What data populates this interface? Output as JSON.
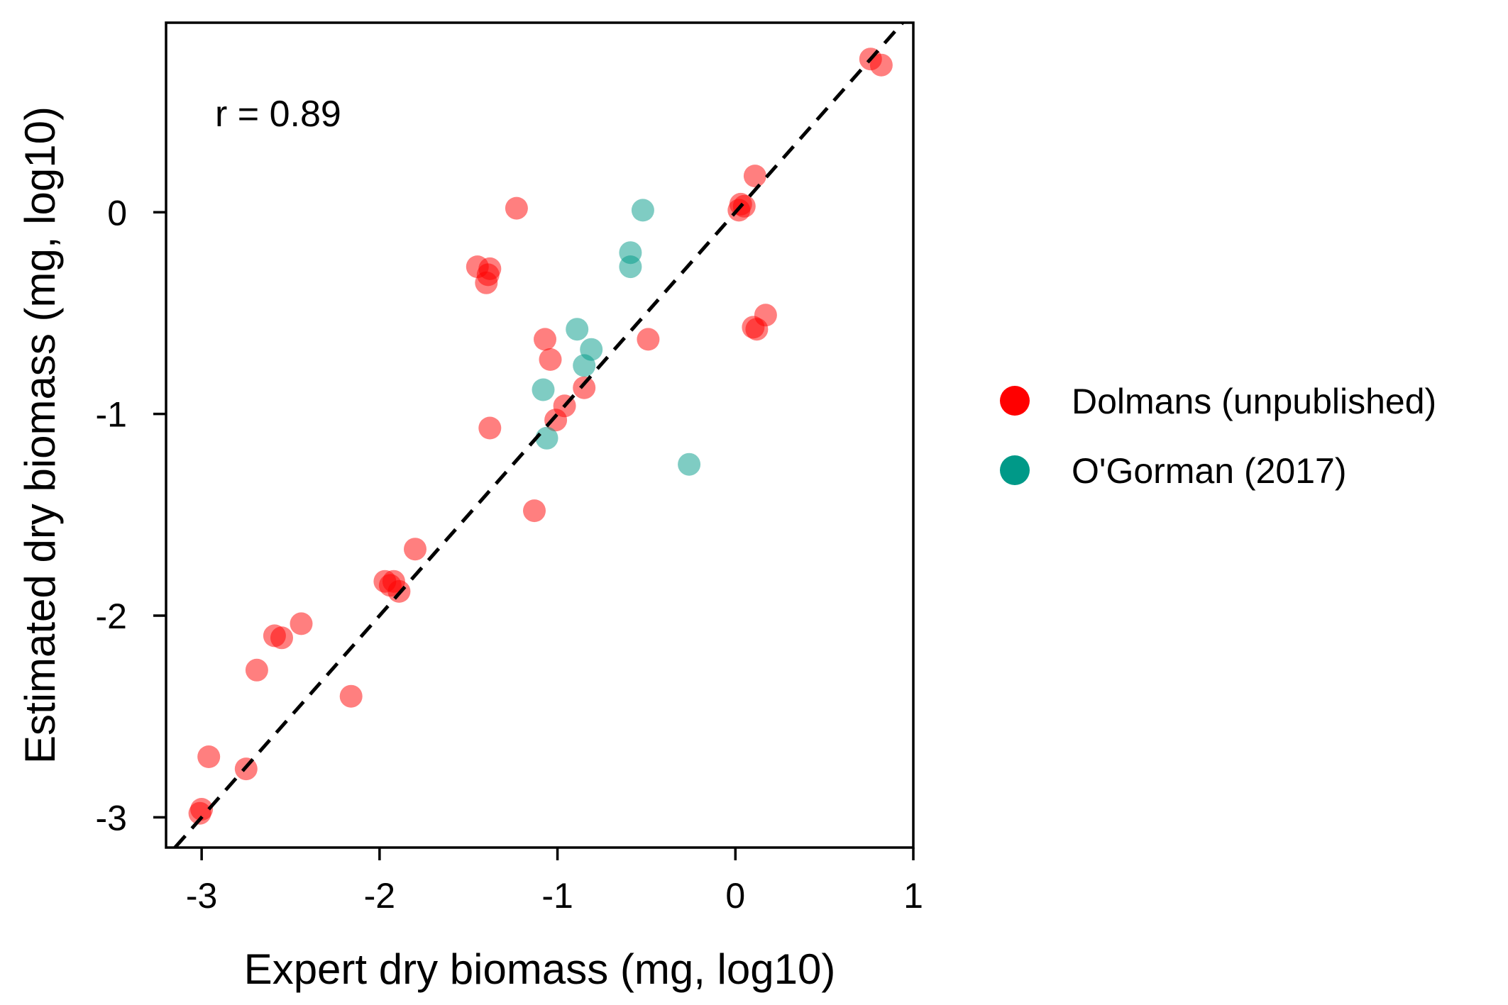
{
  "chart_data": {
    "type": "scatter",
    "xlabel": "Expert dry biomass (mg, log10)",
    "ylabel": "Estimated dry biomass (mg, log10)",
    "xlim": [
      -3.2,
      1.0
    ],
    "ylim": [
      -3.15,
      0.94
    ],
    "xticks": [
      -3,
      -2,
      -1,
      0,
      1
    ],
    "yticks": [
      -3,
      -2,
      -1,
      0
    ],
    "xtick_labels": [
      "-3",
      "-2",
      "-1",
      "0",
      "1"
    ],
    "ytick_labels": [
      "-3",
      "-2",
      "-1",
      "0"
    ],
    "grid": false,
    "legend_position": "right",
    "reference_line": "y = x (dashed)",
    "annotation": "r = 0.89",
    "series": [
      {
        "name": "Dolmans (unpublished)",
        "color": "#ff0000",
        "points": [
          [
            0.76,
            0.76
          ],
          [
            0.82,
            0.73
          ],
          [
            0.11,
            0.18
          ],
          [
            0.05,
            0.03
          ],
          [
            0.03,
            0.04
          ],
          [
            0.02,
            0.01
          ],
          [
            0.1,
            -0.57
          ],
          [
            0.12,
            -0.58
          ],
          [
            0.17,
            -0.51
          ],
          [
            -1.23,
            0.02
          ],
          [
            -1.45,
            -0.27
          ],
          [
            -1.38,
            -0.28
          ],
          [
            -1.39,
            -0.31
          ],
          [
            -1.4,
            -0.35
          ],
          [
            -1.07,
            -0.63
          ],
          [
            -1.04,
            -0.73
          ],
          [
            -0.49,
            -0.63
          ],
          [
            -0.85,
            -0.87
          ],
          [
            -0.96,
            -0.96
          ],
          [
            -1.01,
            -1.03
          ],
          [
            -1.38,
            -1.07
          ],
          [
            -1.13,
            -1.48
          ],
          [
            -1.8,
            -1.67
          ],
          [
            -1.97,
            -1.83
          ],
          [
            -1.94,
            -1.85
          ],
          [
            -1.92,
            -1.83
          ],
          [
            -1.89,
            -1.88
          ],
          [
            -2.44,
            -2.04
          ],
          [
            -2.59,
            -2.1
          ],
          [
            -2.55,
            -2.11
          ],
          [
            -2.69,
            -2.27
          ],
          [
            -2.16,
            -2.4
          ],
          [
            -2.96,
            -2.7
          ],
          [
            -2.75,
            -2.76
          ],
          [
            -3.0,
            -2.96
          ],
          [
            -3.01,
            -2.98
          ]
        ]
      },
      {
        "name": "O'Gorman (2017)",
        "color": "#009988",
        "points": [
          [
            -0.52,
            0.01
          ],
          [
            -0.59,
            -0.2
          ],
          [
            -0.59,
            -0.27
          ],
          [
            -0.89,
            -0.58
          ],
          [
            -0.81,
            -0.68
          ],
          [
            -0.85,
            -0.76
          ],
          [
            -1.08,
            -0.88
          ],
          [
            -1.06,
            -1.12
          ],
          [
            -0.26,
            -1.25
          ]
        ]
      }
    ]
  }
}
